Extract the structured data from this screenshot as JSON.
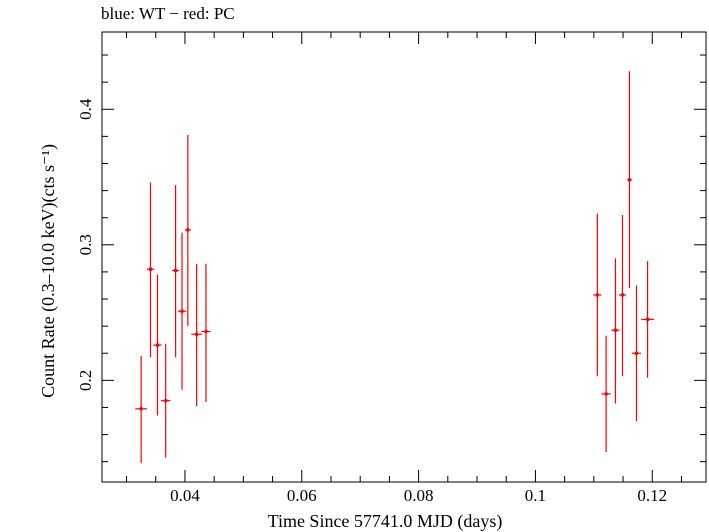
{
  "title": "blue: WT − red: PC",
  "chart_data": {
    "type": "scatter",
    "title": "blue: WT − red: PC",
    "xlabel": "Time Since 57741.0 MJD (days)",
    "ylabel": "Count Rate (0.3–10.0 keV)(cts s⁻¹)",
    "xlim": [
      0.0258,
      0.1292
    ],
    "ylim": [
      0.125,
      0.457
    ],
    "x_ticks": [
      0.04,
      0.06,
      0.08,
      0.1,
      0.12
    ],
    "x_tick_labels": [
      "0.04",
      "0.06",
      "0.08",
      "0.1",
      "0.12"
    ],
    "y_ticks": [
      0.2,
      0.3,
      0.4
    ],
    "y_tick_labels": [
      "0.2",
      "0.3",
      "0.4"
    ],
    "grid": false,
    "series": [
      {
        "name": "PC",
        "color": "#ff0000",
        "points": [
          {
            "x": 0.0325,
            "y": 0.179,
            "xerr": 0.001,
            "yerr_lo": 0.04,
            "yerr_hi": 0.039
          },
          {
            "x": 0.0341,
            "y": 0.282,
            "xerr": 0.0006,
            "yerr_lo": 0.065,
            "yerr_hi": 0.064
          },
          {
            "x": 0.0353,
            "y": 0.226,
            "xerr": 0.0007,
            "yerr_lo": 0.052,
            "yerr_hi": 0.052
          },
          {
            "x": 0.0367,
            "y": 0.185,
            "xerr": 0.0008,
            "yerr_lo": 0.042,
            "yerr_hi": 0.042
          },
          {
            "x": 0.0384,
            "y": 0.281,
            "xerr": 0.0006,
            "yerr_lo": 0.064,
            "yerr_hi": 0.063
          },
          {
            "x": 0.0395,
            "y": 0.251,
            "xerr": 0.0007,
            "yerr_lo": 0.058,
            "yerr_hi": 0.058
          },
          {
            "x": 0.0405,
            "y": 0.311,
            "xerr": 0.0005,
            "yerr_lo": 0.071,
            "yerr_hi": 0.07
          },
          {
            "x": 0.042,
            "y": 0.234,
            "xerr": 0.0009,
            "yerr_lo": 0.053,
            "yerr_hi": 0.052
          },
          {
            "x": 0.0436,
            "y": 0.236,
            "xerr": 0.0008,
            "yerr_lo": 0.052,
            "yerr_hi": 0.05
          },
          {
            "x": 0.1106,
            "y": 0.263,
            "xerr": 0.0007,
            "yerr_lo": 0.06,
            "yerr_hi": 0.06
          },
          {
            "x": 0.1121,
            "y": 0.19,
            "xerr": 0.0008,
            "yerr_lo": 0.043,
            "yerr_hi": 0.043
          },
          {
            "x": 0.1137,
            "y": 0.237,
            "xerr": 0.0007,
            "yerr_lo": 0.054,
            "yerr_hi": 0.053
          },
          {
            "x": 0.1149,
            "y": 0.263,
            "xerr": 0.0006,
            "yerr_lo": 0.06,
            "yerr_hi": 0.059
          },
          {
            "x": 0.1161,
            "y": 0.348,
            "xerr": 0.0004,
            "yerr_lo": 0.08,
            "yerr_hi": 0.08
          },
          {
            "x": 0.1173,
            "y": 0.22,
            "xerr": 0.0008,
            "yerr_lo": 0.05,
            "yerr_hi": 0.05
          },
          {
            "x": 0.1192,
            "y": 0.245,
            "xerr": 0.0011,
            "yerr_lo": 0.043,
            "yerr_hi": 0.043
          }
        ]
      }
    ]
  }
}
